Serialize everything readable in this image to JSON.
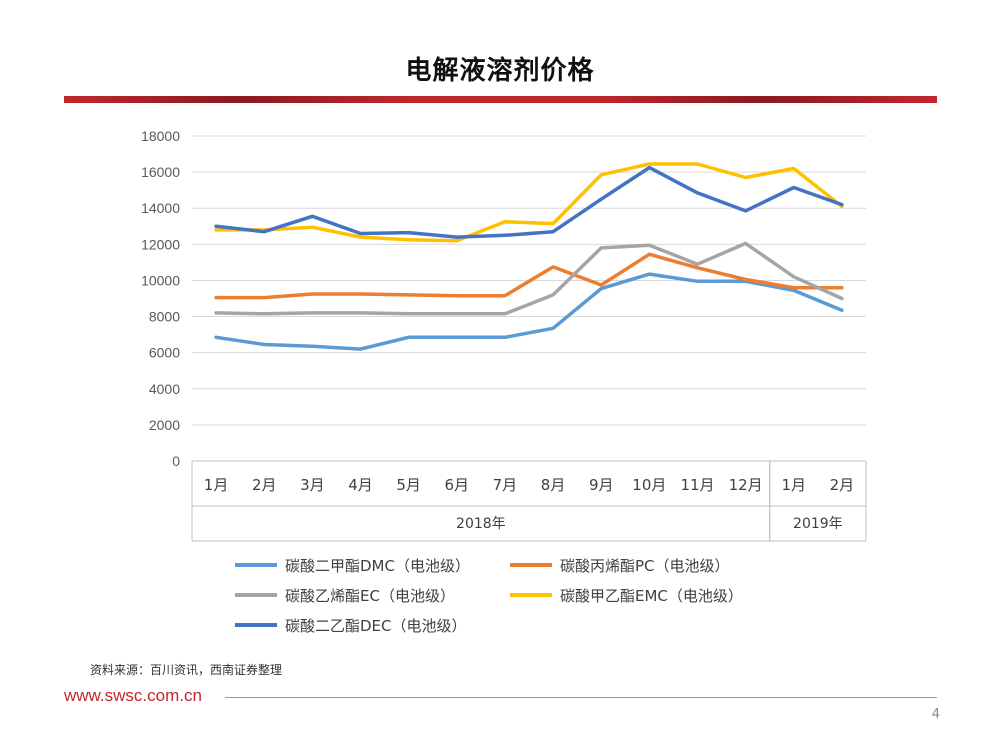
{
  "page": {
    "title": "电解液溶剂价格",
    "source": "资料来源：百川资讯，西南证券整理",
    "website": "www.swsc.com.cn",
    "page_number": "4"
  },
  "chart_data": {
    "type": "line",
    "title": "",
    "xlabel": "",
    "ylabel": "",
    "ylim": [
      0,
      18000
    ],
    "yticks": [
      0,
      2000,
      4000,
      6000,
      8000,
      10000,
      12000,
      14000,
      16000,
      18000
    ],
    "grid": true,
    "legend_position": "bottom",
    "categories": [
      "1月",
      "2月",
      "3月",
      "4月",
      "5月",
      "6月",
      "7月",
      "8月",
      "9月",
      "10月",
      "11月",
      "12月",
      "1月",
      "2月"
    ],
    "year_groups": [
      {
        "label": "2018年",
        "count": 12
      },
      {
        "label": "2019年",
        "count": 2
      }
    ],
    "series": [
      {
        "name": "碳酸二甲酯DMC（电池级）",
        "color": "#5b9bd5",
        "values": [
          6850,
          6450,
          6350,
          6200,
          6850,
          6850,
          6850,
          7350,
          9550,
          10350,
          9950,
          9950,
          9450,
          8350
        ]
      },
      {
        "name": "碳酸丙烯酯PC（电池级）",
        "color": "#ed7d31",
        "values": [
          9050,
          9050,
          9250,
          9250,
          9200,
          9150,
          9150,
          10750,
          9750,
          11450,
          10700,
          10050,
          9600,
          9600
        ]
      },
      {
        "name": "碳酸乙烯酯EC（电池级）",
        "color": "#a5a5a5",
        "values": [
          8200,
          8150,
          8200,
          8200,
          8150,
          8150,
          8150,
          9200,
          11800,
          11950,
          10900,
          12050,
          10200,
          9000
        ]
      },
      {
        "name": "碳酸甲乙酯EMC（电池级）",
        "color": "#ffc000",
        "values": [
          12800,
          12800,
          12950,
          12400,
          12250,
          12200,
          13250,
          13150,
          15850,
          16450,
          16450,
          15700,
          16200,
          14100
        ]
      },
      {
        "name": "碳酸二乙酯DEC（电池级）",
        "color": "#4472c4",
        "values": [
          13000,
          12700,
          13550,
          12600,
          12650,
          12400,
          12500,
          12700,
          14500,
          16250,
          14850,
          13850,
          15150,
          14200
        ]
      }
    ]
  }
}
